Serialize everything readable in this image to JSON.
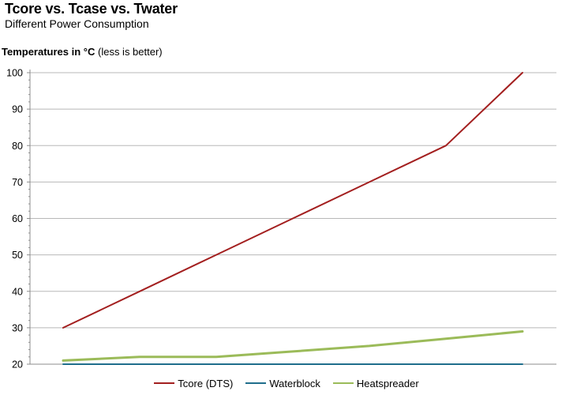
{
  "chart_data": {
    "type": "line",
    "title": "Tcore vs. Tcase vs. Twater",
    "subtitle": "Different Power Consumption",
    "ylabel_bold": "Temperatures in °C",
    "ylabel_rest": " (less is better)",
    "xlabel": "",
    "ylim": [
      20,
      100
    ],
    "yticks": [
      20,
      30,
      40,
      50,
      60,
      70,
      80,
      90,
      100
    ],
    "x": [
      0,
      1,
      2,
      3,
      4,
      5,
      6
    ],
    "grid": true,
    "legend_position": "bottom",
    "series": [
      {
        "name": "Tcore (DTS)",
        "color": "#a31f1f",
        "values": [
          30,
          40,
          50,
          60,
          70,
          80,
          100
        ]
      },
      {
        "name": "Waterblock",
        "color": "#1f6e8c",
        "values": [
          20,
          20,
          20,
          20,
          20,
          20,
          20
        ]
      },
      {
        "name": "Heatspreader",
        "color": "#9bbb59",
        "values": [
          21,
          22,
          22,
          23.5,
          25,
          27,
          29
        ]
      }
    ]
  }
}
